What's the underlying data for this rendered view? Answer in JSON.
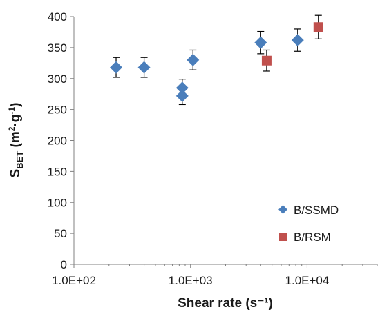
{
  "chart_data": {
    "type": "scatter",
    "xlabel": "Shear rate (s⁻¹)",
    "ylabel": {
      "base": "S",
      "sub": "BET",
      "unit_open": " (m",
      "unit_sup1": "2",
      "unit_mid": "·g",
      "unit_sup2": "-1",
      "unit_close": ")"
    },
    "x_scale": "log",
    "xlim": [
      100,
      40000
    ],
    "ylim": [
      0,
      400
    ],
    "x_ticks": [
      {
        "value": 100,
        "label": "1.0E+02"
      },
      {
        "value": 1000,
        "label": "1.0E+03"
      },
      {
        "value": 10000,
        "label": "1.0E+04"
      }
    ],
    "y_ticks": [
      {
        "value": 0,
        "label": "0"
      },
      {
        "value": 50,
        "label": "50"
      },
      {
        "value": 100,
        "label": "100"
      },
      {
        "value": 150,
        "label": "150"
      },
      {
        "value": 200,
        "label": "200"
      },
      {
        "value": 250,
        "label": "250"
      },
      {
        "value": 300,
        "label": "300"
      },
      {
        "value": 350,
        "label": "350"
      },
      {
        "value": 400,
        "label": "400"
      }
    ],
    "grid": false,
    "legend_position": "bottom-right",
    "series": [
      {
        "name": "B/SSMD",
        "marker": "diamond",
        "color": "#4a7ebb",
        "points": [
          {
            "x": 230,
            "y": 318,
            "err": 16
          },
          {
            "x": 400,
            "y": 318,
            "err": 16
          },
          {
            "x": 850,
            "y": 285,
            "err": 14
          },
          {
            "x": 850,
            "y": 272,
            "err": 14
          },
          {
            "x": 1050,
            "y": 330,
            "err": 16
          },
          {
            "x": 4000,
            "y": 358,
            "err": 18
          },
          {
            "x": 8300,
            "y": 362,
            "err": 18
          }
        ]
      },
      {
        "name": "B/RSM",
        "marker": "square",
        "color": "#c0504d",
        "points": [
          {
            "x": 4500,
            "y": 329,
            "err": 17
          },
          {
            "x": 12500,
            "y": 383,
            "err": 19
          }
        ]
      }
    ]
  }
}
